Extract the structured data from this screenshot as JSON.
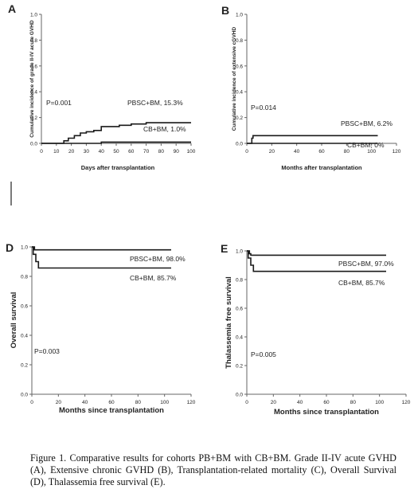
{
  "caption": "Figure 1. Comparative results for cohorts PB+BM with CB+BM. Grade II-IV acute GVHD (A), Extensive chronic GVHD (B), Transplantation-related mortality (C), Overall Survival (D), Thalassemia free survival (E).",
  "colors": {
    "line": "#1a1a1a",
    "axis": "#666666",
    "text": "#222222"
  },
  "chart_data": [
    {
      "panel": "A",
      "type": "line",
      "xlabel": "Days after transplantation",
      "ylabel": "Cumulative incidence of grade II-IV acute GVHD",
      "xlim": [
        0,
        100
      ],
      "ylim": [
        0,
        1.0
      ],
      "xticks": [
        "0",
        "10",
        "20",
        "30",
        "40",
        "50",
        "60",
        "70",
        "80",
        "90",
        "100"
      ],
      "yticks": [
        "0.0",
        "0.2",
        "0.4",
        "0.6",
        "0.8",
        "1.0"
      ],
      "pvalue": "P=0.001",
      "annotations": [
        "PBSC+BM, 15.3%",
        "CB+BM, 1.0%"
      ],
      "series": [
        {
          "x": [
            0,
            12,
            15,
            18,
            22,
            26,
            30,
            35,
            40,
            45,
            52,
            60,
            70,
            100
          ],
          "y": [
            0,
            0,
            0.02,
            0.04,
            0.06,
            0.08,
            0.09,
            0.1,
            0.13,
            0.13,
            0.14,
            0.15,
            0.16,
            0.16
          ]
        },
        {
          "x": [
            0,
            40,
            100
          ],
          "y": [
            0,
            0.01,
            0.01
          ]
        }
      ]
    },
    {
      "panel": "B",
      "type": "line",
      "xlabel": "Months after transplantation",
      "ylabel": "Cumulative incidence of extensive cGVHD",
      "xlim": [
        0,
        120
      ],
      "ylim": [
        0,
        1.0
      ],
      "xticks": [
        "0",
        "20",
        "40",
        "60",
        "80",
        "100",
        "120"
      ],
      "yticks": [
        "0.0",
        "0.2",
        "0.4",
        "0.6",
        "0.8",
        "1.0"
      ],
      "pvalue": "P=0.014",
      "annotations": [
        "PBSC+BM, 6.2%",
        "CB+BM, 0%"
      ],
      "series": [
        {
          "x": [
            0,
            3,
            4,
            5,
            105
          ],
          "y": [
            0,
            0,
            0.04,
            0.06,
            0.06
          ]
        },
        {
          "x": [
            0,
            105
          ],
          "y": [
            0,
            0
          ]
        }
      ]
    },
    {
      "panel": "D",
      "type": "line",
      "xlabel": "Months since transplantation",
      "ylabel": "Overall survival",
      "xlim": [
        0,
        120
      ],
      "ylim": [
        0,
        1.0
      ],
      "xticks": [
        "0",
        "20",
        "40",
        "60",
        "80",
        "100",
        "120"
      ],
      "yticks": [
        "0.0",
        "0.2",
        "0.4",
        "0.6",
        "0.8",
        "1.0"
      ],
      "pvalue": "P=0.003",
      "annotations": [
        "PBSC+BM, 98.0%",
        "CB+BM, 85.7%"
      ],
      "series": [
        {
          "x": [
            0,
            2,
            105
          ],
          "y": [
            1.0,
            0.98,
            0.98
          ]
        },
        {
          "x": [
            0,
            1,
            3,
            5,
            105
          ],
          "y": [
            1.0,
            0.95,
            0.9,
            0.857,
            0.857
          ]
        }
      ]
    },
    {
      "panel": "E",
      "type": "line",
      "xlabel": "Months since transplantation",
      "ylabel": "Thalassemia free survival",
      "xlim": [
        0,
        120
      ],
      "ylim": [
        0,
        1.0
      ],
      "xticks": [
        "0",
        "20",
        "40",
        "60",
        "80",
        "100",
        "120"
      ],
      "yticks": [
        "0.0",
        "0.2",
        "0.4",
        "0.6",
        "0.8",
        "1.0"
      ],
      "pvalue": "P=0.005",
      "annotations": [
        "PBSC+BM, 97.0%",
        "CB+BM, 85.7%"
      ],
      "series": [
        {
          "x": [
            0,
            2,
            3,
            105
          ],
          "y": [
            1.0,
            0.98,
            0.97,
            0.97
          ]
        },
        {
          "x": [
            0,
            1,
            3,
            5,
            105
          ],
          "y": [
            1.0,
            0.95,
            0.9,
            0.857,
            0.857
          ]
        }
      ]
    }
  ]
}
